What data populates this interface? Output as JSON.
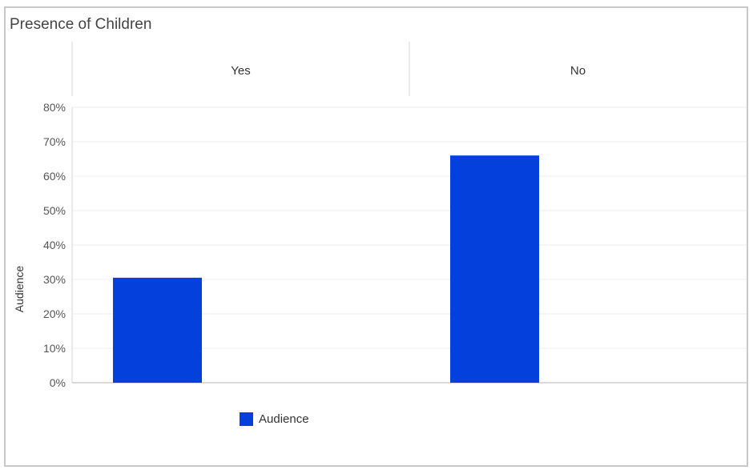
{
  "chart_data": {
    "type": "bar",
    "title": "Presence of Children",
    "categories": [
      "Yes",
      "No"
    ],
    "series": [
      {
        "name": "Audience",
        "values": [
          30.5,
          66
        ],
        "color": "#0441dc"
      }
    ],
    "ylabel": "Audience",
    "xlabel": "",
    "ylim": [
      0,
      80
    ],
    "yticks": [
      0,
      10,
      20,
      30,
      40,
      50,
      60,
      70,
      80
    ],
    "ytick_labels": [
      "0%",
      "10%",
      "20%",
      "30%",
      "40%",
      "50%",
      "60%",
      "70%",
      "80%"
    ],
    "grid": true,
    "legend_position": "bottom-left"
  }
}
